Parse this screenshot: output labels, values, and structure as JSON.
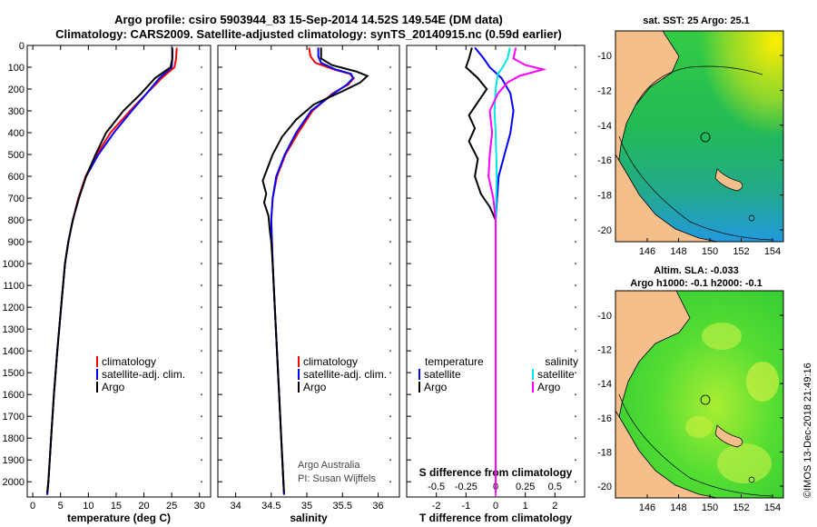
{
  "title": {
    "line1": "Argo profile: csiro 5903944_83 15-Sep-2014 14.52S 149.54E (DM data)",
    "line2": "Climatology: CARS2009. Satellite-adjusted climatology: synTS_20140915.nc (0.59d earlier)"
  },
  "colors": {
    "climatology": "#ff0000",
    "satellite": "#0000ff",
    "argo": "#000000",
    "sat_s": "#00e5e5",
    "argo_s": "#ff00ff",
    "land": "#f5bf8c"
  },
  "chart_data": [
    {
      "type": "line",
      "name": "temperature",
      "xlabel": "temperature (deg C)",
      "ylabel": "",
      "xlim": [
        -1,
        32
      ],
      "ylim": [
        2070,
        0
      ],
      "xticks": [
        0,
        5,
        10,
        15,
        20,
        25,
        30
      ],
      "yticks": [
        0,
        100,
        200,
        300,
        400,
        500,
        600,
        700,
        800,
        900,
        1000,
        1100,
        1200,
        1300,
        1400,
        1500,
        1600,
        1700,
        1800,
        1900,
        2000
      ],
      "legend": [
        "climatology",
        "satellite-adj. clim.",
        "Argo"
      ],
      "series": [
        {
          "name": "climatology",
          "points": [
            [
              25.9,
              10
            ],
            [
              25.8,
              60
            ],
            [
              25.5,
              100
            ],
            [
              23.2,
              150
            ],
            [
              20.5,
              220
            ],
            [
              17.5,
              300
            ],
            [
              14,
              400
            ],
            [
              11.5,
              500
            ],
            [
              9.5,
              600
            ],
            [
              8.2,
              700
            ],
            [
              7.2,
              800
            ],
            [
              6.4,
              900
            ],
            [
              5.8,
              1000
            ],
            [
              5.1,
              1200
            ],
            [
              4.4,
              1400
            ],
            [
              3.8,
              1600
            ],
            [
              3.3,
              1800
            ],
            [
              2.8,
              2000
            ],
            [
              2.6,
              2060
            ]
          ]
        },
        {
          "name": "satellite-adj. clim.",
          "points": [
            [
              25.1,
              10
            ],
            [
              25.1,
              60
            ],
            [
              25,
              100
            ],
            [
              22.8,
              150
            ],
            [
              20.5,
              220
            ],
            [
              17.8,
              300
            ],
            [
              14.6,
              400
            ],
            [
              11.8,
              500
            ],
            [
              9.6,
              600
            ],
            [
              8.3,
              700
            ],
            [
              7.2,
              800
            ],
            [
              6.4,
              900
            ],
            [
              5.8,
              1000
            ],
            [
              5.1,
              1200
            ],
            [
              4.4,
              1400
            ],
            [
              3.8,
              1600
            ],
            [
              3.3,
              1800
            ],
            [
              2.8,
              2000
            ],
            [
              2.6,
              2060
            ]
          ]
        },
        {
          "name": "Argo",
          "points": [
            [
              25.1,
              10
            ],
            [
              25.1,
              60
            ],
            [
              24.8,
              100
            ],
            [
              22,
              150
            ],
            [
              19.5,
              220
            ],
            [
              16.3,
              300
            ],
            [
              13.2,
              400
            ],
            [
              11.3,
              500
            ],
            [
              9.6,
              600
            ],
            [
              8.3,
              700
            ],
            [
              7.2,
              800
            ],
            [
              6.4,
              900
            ],
            [
              5.8,
              1000
            ],
            [
              5.1,
              1200
            ],
            [
              4.4,
              1400
            ],
            [
              3.8,
              1600
            ],
            [
              3.3,
              1800
            ],
            [
              2.8,
              2000
            ],
            [
              2.6,
              2050
            ]
          ]
        }
      ]
    },
    {
      "type": "line",
      "name": "salinity",
      "xlabel": "salinity",
      "xlim": [
        33.75,
        36.3
      ],
      "ylim": [
        2070,
        0
      ],
      "xticks": [
        34,
        34.5,
        35,
        35.5,
        36
      ],
      "legend": [
        "climatology",
        "satellite-adj. clim.",
        "Argo"
      ],
      "series": [
        {
          "name": "climatology",
          "points": [
            [
              35.03,
              10
            ],
            [
              35.05,
              50
            ],
            [
              35.12,
              80
            ],
            [
              35.38,
              110
            ],
            [
              35.6,
              130
            ],
            [
              35.66,
              150
            ],
            [
              35.58,
              180
            ],
            [
              35.36,
              220
            ],
            [
              35.08,
              300
            ],
            [
              34.88,
              400
            ],
            [
              34.7,
              500
            ],
            [
              34.58,
              600
            ],
            [
              34.52,
              700
            ],
            [
              34.5,
              800
            ],
            [
              34.51,
              900
            ],
            [
              34.52,
              1000
            ],
            [
              34.55,
              1200
            ],
            [
              34.58,
              1400
            ],
            [
              34.61,
              1600
            ],
            [
              34.64,
              1800
            ],
            [
              34.67,
              2000
            ],
            [
              34.68,
              2060
            ]
          ]
        },
        {
          "name": "satellite-adj. clim.",
          "points": [
            [
              35.16,
              10
            ],
            [
              35.16,
              50
            ],
            [
              35.2,
              80
            ],
            [
              35.4,
              110
            ],
            [
              35.62,
              130
            ],
            [
              35.65,
              150
            ],
            [
              35.56,
              180
            ],
            [
              35.38,
              220
            ],
            [
              35.06,
              300
            ],
            [
              34.85,
              400
            ],
            [
              34.69,
              500
            ],
            [
              34.57,
              600
            ],
            [
              34.52,
              700
            ],
            [
              34.5,
              800
            ],
            [
              34.51,
              900
            ],
            [
              34.52,
              1000
            ],
            [
              34.55,
              1200
            ],
            [
              34.58,
              1400
            ],
            [
              34.61,
              1600
            ],
            [
              34.64,
              1800
            ],
            [
              34.67,
              2000
            ],
            [
              34.68,
              2060
            ]
          ]
        },
        {
          "name": "Argo",
          "points": [
            [
              35.2,
              10
            ],
            [
              35.2,
              60
            ],
            [
              35.35,
              90
            ],
            [
              35.7,
              120
            ],
            [
              35.85,
              140
            ],
            [
              35.75,
              170
            ],
            [
              35.5,
              210
            ],
            [
              35.1,
              270
            ],
            [
              34.85,
              340
            ],
            [
              34.65,
              420
            ],
            [
              34.52,
              500
            ],
            [
              34.45,
              560
            ],
            [
              34.38,
              620
            ],
            [
              34.43,
              680
            ],
            [
              34.4,
              720
            ],
            [
              34.46,
              780
            ],
            [
              34.48,
              850
            ],
            [
              34.5,
              900
            ],
            [
              34.52,
              1000
            ],
            [
              34.55,
              1200
            ],
            [
              34.58,
              1400
            ],
            [
              34.61,
              1600
            ],
            [
              34.64,
              1800
            ],
            [
              34.67,
              2000
            ],
            [
              34.68,
              2050
            ]
          ]
        }
      ]
    },
    {
      "type": "line",
      "name": "differences",
      "xlabel": "T difference from climatology",
      "xlim": [
        -3,
        3
      ],
      "ylim": [
        2070,
        0
      ],
      "xticks": [
        -2,
        -1,
        0,
        1,
        2
      ],
      "xtick_labels": [
        "-2",
        "-1",
        "0",
        "1",
        "2"
      ],
      "s_ticks": [
        "-0.5",
        "-0.25",
        "0",
        "0.25",
        "0.5"
      ],
      "s_axis_label": "S difference from climatology",
      "legend_temperature": [
        "temperature",
        "satellite",
        "Argo"
      ],
      "legend_salinity": [
        "salinity",
        "satellite",
        "Argo"
      ],
      "series": [
        {
          "name": "T satellite",
          "points": [
            [
              -0.7,
              10
            ],
            [
              -0.4,
              60
            ],
            [
              -0.2,
              100
            ],
            [
              0.2,
              150
            ],
            [
              0.5,
              220
            ],
            [
              0.6,
              300
            ],
            [
              0.5,
              400
            ],
            [
              0.3,
              500
            ],
            [
              0.1,
              600
            ],
            [
              0.05,
              700
            ],
            [
              0,
              800
            ],
            [
              0,
              2050
            ]
          ]
        },
        {
          "name": "T Argo",
          "points": [
            [
              -0.8,
              10
            ],
            [
              -0.9,
              60
            ],
            [
              -1,
              100
            ],
            [
              -0.6,
              150
            ],
            [
              -0.3,
              200
            ],
            [
              -0.6,
              260
            ],
            [
              -0.9,
              320
            ],
            [
              -0.7,
              380
            ],
            [
              -0.9,
              440
            ],
            [
              -0.6,
              520
            ],
            [
              -0.7,
              600
            ],
            [
              -0.5,
              680
            ],
            [
              -0.2,
              740
            ],
            [
              0,
              800
            ],
            [
              0,
              2050
            ]
          ]
        },
        {
          "name": "S satellite",
          "points": [
            [
              0.12,
              10
            ],
            [
              0.1,
              60
            ],
            [
              0.06,
              100
            ],
            [
              0.02,
              130
            ],
            [
              0,
              200
            ],
            [
              -0.01,
              300
            ],
            [
              0,
              400
            ],
            [
              0.01,
              600
            ],
            [
              0,
              800
            ],
            [
              0,
              2050
            ]
          ]
        },
        {
          "name": "S Argo",
          "points": [
            [
              0.17,
              10
            ],
            [
              0.15,
              60
            ],
            [
              0.25,
              90
            ],
            [
              0.4,
              110
            ],
            [
              0.2,
              140
            ],
            [
              0.1,
              170
            ],
            [
              0.02,
              220
            ],
            [
              -0.05,
              300
            ],
            [
              -0.03,
              400
            ],
            [
              -0.05,
              500
            ],
            [
              -0.06,
              600
            ],
            [
              -0.02,
              700
            ],
            [
              0,
              800
            ],
            [
              0,
              2050
            ]
          ]
        }
      ]
    }
  ],
  "maps": {
    "sst": {
      "title": "sat. SST: 25 Argo: 25.1",
      "yticks": [
        "-10",
        "-12",
        "-14",
        "-16",
        "-18",
        "-20"
      ],
      "xticks": [
        "146",
        "148",
        "150",
        "152",
        "154"
      ]
    },
    "sla": {
      "title1": "Altim. SLA: -0.033",
      "title2": "Argo h1000: -0.1 h2000: -0.1",
      "yticks": [
        "-10",
        "-12",
        "-14",
        "-16",
        "-18",
        "-20"
      ],
      "xticks": [
        "146",
        "148",
        "150",
        "152",
        "154"
      ]
    }
  },
  "credits": {
    "line1": "Argo Australia",
    "line2": "PI: Susan Wijffels",
    "stamp": "©IMOS 13-Dec-2018 21:49:16"
  }
}
